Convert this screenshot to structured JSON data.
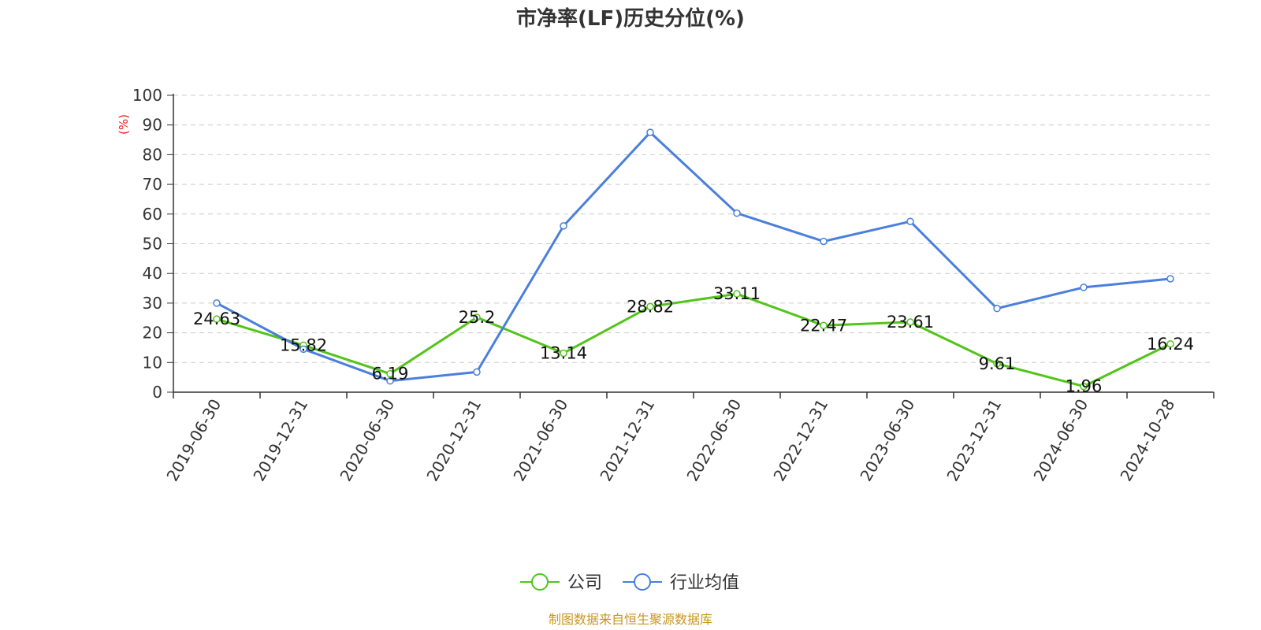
{
  "chart_data": {
    "type": "line",
    "title": "市净率(LF)历史分位(%)",
    "ylabel": "(%)",
    "xlabel": "",
    "ylim": [
      0,
      100
    ],
    "yticks": [
      0,
      10,
      20,
      30,
      40,
      50,
      60,
      70,
      80,
      90,
      100
    ],
    "grid": true,
    "legend_position": "bottom-center",
    "categories": [
      "2019-06-30",
      "2019-12-31",
      "2020-06-30",
      "2020-12-31",
      "2021-06-30",
      "2021-12-31",
      "2022-06-30",
      "2022-12-31",
      "2023-06-30",
      "2023-12-31",
      "2024-06-30",
      "2024-10-28"
    ],
    "series": [
      {
        "name": "公司",
        "color": "#52c41a",
        "values": [
          24.63,
          15.82,
          6.19,
          25.2,
          13.14,
          28.82,
          33.11,
          22.47,
          23.61,
          9.61,
          1.96,
          16.24
        ],
        "labels": [
          "24.63",
          "15.82",
          "6.19",
          "25.2",
          "13.14",
          "28.82",
          "33.11",
          "22.47",
          "23.61",
          "9.61",
          "1.96",
          "16.24"
        ]
      },
      {
        "name": "行业均值",
        "color": "#4a7fdc",
        "values": [
          30.0,
          14.5,
          3.8,
          6.8,
          56.0,
          87.5,
          60.3,
          50.8,
          57.5,
          28.2,
          35.3,
          38.2
        ]
      }
    ],
    "source": "制图数据来自恒生聚源数据库",
    "source_color": "#c8961e",
    "ylabel_color": "#e0201a",
    "axis_color": "#333333",
    "grid_color": "#cccccc"
  }
}
